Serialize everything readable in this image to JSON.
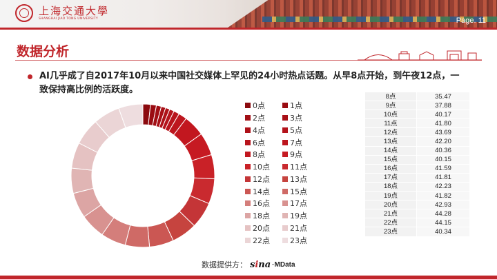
{
  "header": {
    "logo_cn": "上海交通大學",
    "logo_en": "SHANGHAI JIAO TONG UNIVERSITY",
    "page_label": "Page.  11"
  },
  "title": "数据分析",
  "bullet": "AI几乎成了自2017年10月以来中国社交媒体上罕见的24小时热点话题。从早8点开始，到午夜12点，一致保持高比例的活跃度。",
  "source": {
    "label": "数据提供方：",
    "brand1": "sina",
    "brand2": "MData"
  },
  "chart_data": {
    "type": "pie",
    "categories": [
      "0点",
      "1点",
      "2点",
      "3点",
      "4点",
      "5点",
      "6点",
      "7点",
      "8点",
      "9点",
      "10点",
      "11点",
      "12点",
      "13点",
      "14点",
      "15点",
      "16点",
      "17点",
      "18点",
      "19点",
      "20点",
      "21点",
      "22点",
      "23点"
    ],
    "values": [
      12.5,
      9.8,
      8.2,
      7.4,
      7.1,
      7.6,
      9.4,
      13.9,
      35.47,
      37.88,
      40.17,
      41.8,
      43.69,
      42.2,
      40.36,
      40.15,
      41.59,
      41.81,
      42.23,
      41.82,
      42.93,
      44.28,
      44.15,
      40.34
    ],
    "colors": [
      "#8b0a0e",
      "#9a0c12",
      "#a10f15",
      "#a80f16",
      "#ae1118",
      "#b4131b",
      "#b8141c",
      "#bd161e",
      "#c2171f",
      "#c61a22",
      "#c92127",
      "#c92a2f",
      "#c43537",
      "#c6443f",
      "#cb5753",
      "#cf6a66",
      "#d47e7b",
      "#d89290",
      "#dca5a4",
      "#e0b5b4",
      "#e5c2c2",
      "#e8cccd",
      "#ebd5d6",
      "#eedddf"
    ],
    "donut": true
  },
  "table": {
    "rows": [
      {
        "hour": "8点",
        "value": "35.47"
      },
      {
        "hour": "9点",
        "value": "37.88"
      },
      {
        "hour": "10点",
        "value": "40.17"
      },
      {
        "hour": "11点",
        "value": "41.80"
      },
      {
        "hour": "12点",
        "value": "43.69"
      },
      {
        "hour": "13点",
        "value": "42.20"
      },
      {
        "hour": "14点",
        "value": "40.36"
      },
      {
        "hour": "15点",
        "value": "40.15"
      },
      {
        "hour": "16点",
        "value": "41.59"
      },
      {
        "hour": "17点",
        "value": "41.81"
      },
      {
        "hour": "18点",
        "value": "42.23"
      },
      {
        "hour": "19点",
        "value": "41.82"
      },
      {
        "hour": "20点",
        "value": "42.93"
      },
      {
        "hour": "21点",
        "value": "44.28"
      },
      {
        "hour": "22点",
        "value": "44.15"
      },
      {
        "hour": "23点",
        "value": "40.34"
      }
    ]
  }
}
